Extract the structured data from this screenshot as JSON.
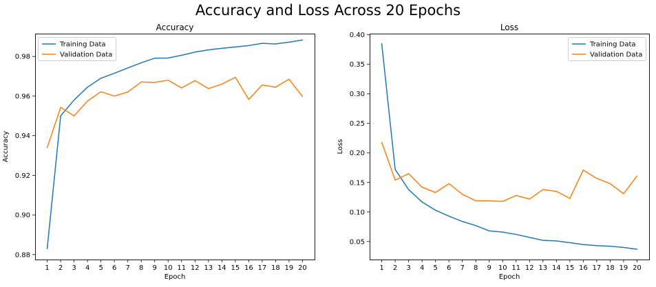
{
  "figure": {
    "title": "Accuracy and Loss Across 20 Epochs"
  },
  "chart_data": [
    {
      "type": "line",
      "title": "Accuracy",
      "xlabel": "Epoch",
      "ylabel": "Accuracy",
      "x": [
        1,
        2,
        3,
        4,
        5,
        6,
        7,
        8,
        9,
        10,
        11,
        12,
        13,
        14,
        15,
        16,
        17,
        18,
        19,
        20
      ],
      "xticks": [
        1,
        2,
        3,
        4,
        5,
        6,
        7,
        8,
        9,
        10,
        11,
        12,
        13,
        14,
        15,
        16,
        17,
        18,
        19,
        20
      ],
      "xlim": [
        0.1,
        20.9
      ],
      "ylim": [
        0.8775,
        0.9915
      ],
      "yticks": [
        0.88,
        0.9,
        0.92,
        0.94,
        0.96,
        0.98
      ],
      "ytick_labels": [
        "0.88",
        "0.90",
        "0.92",
        "0.94",
        "0.96",
        "0.98"
      ],
      "grid": false,
      "legend_position": "top-left",
      "series": [
        {
          "name": "Training Data",
          "color": "#1f77b4",
          "values": [
            0.883,
            0.95,
            0.958,
            0.9645,
            0.969,
            0.9715,
            0.9742,
            0.9768,
            0.9791,
            0.9792,
            0.9806,
            0.9822,
            0.9833,
            0.9841,
            0.9848,
            0.9855,
            0.9866,
            0.9863,
            0.9872,
            0.9883
          ]
        },
        {
          "name": "Validation Data",
          "color": "#ff7f0e",
          "values": [
            0.934,
            0.9543,
            0.95,
            0.9575,
            0.9622,
            0.96,
            0.9621,
            0.9671,
            0.9669,
            0.968,
            0.9641,
            0.9678,
            0.9638,
            0.966,
            0.9695,
            0.9583,
            0.9656,
            0.9645,
            0.9685,
            0.9598
          ]
        }
      ]
    },
    {
      "type": "line",
      "title": "Loss",
      "xlabel": "Epoch",
      "ylabel": "Loss",
      "x": [
        1,
        2,
        3,
        4,
        5,
        6,
        7,
        8,
        9,
        10,
        11,
        12,
        13,
        14,
        15,
        16,
        17,
        18,
        19,
        20
      ],
      "xticks": [
        1,
        2,
        3,
        4,
        5,
        6,
        7,
        8,
        9,
        10,
        11,
        12,
        13,
        14,
        15,
        16,
        17,
        18,
        19,
        20
      ],
      "xlim": [
        0.1,
        20.9
      ],
      "ylim": [
        0.0195,
        0.402
      ],
      "yticks": [
        0.05,
        0.1,
        0.15,
        0.2,
        0.25,
        0.3,
        0.35,
        0.4
      ],
      "ytick_labels": [
        "0.05",
        "0.10",
        "0.15",
        "0.20",
        "0.25",
        "0.30",
        "0.35",
        "0.40"
      ],
      "grid": false,
      "legend_position": "top-right",
      "series": [
        {
          "name": "Training Data",
          "color": "#1f77b4",
          "values": [
            0.385,
            0.172,
            0.138,
            0.117,
            0.103,
            0.093,
            0.084,
            0.077,
            0.068,
            0.066,
            0.062,
            0.057,
            0.052,
            0.051,
            0.048,
            0.045,
            0.043,
            0.042,
            0.04,
            0.037
          ]
        },
        {
          "name": "Validation Data",
          "color": "#ff7f0e",
          "values": [
            0.218,
            0.154,
            0.165,
            0.142,
            0.133,
            0.148,
            0.13,
            0.119,
            0.119,
            0.118,
            0.128,
            0.122,
            0.138,
            0.135,
            0.123,
            0.171,
            0.157,
            0.148,
            0.131,
            0.161
          ]
        }
      ]
    }
  ]
}
